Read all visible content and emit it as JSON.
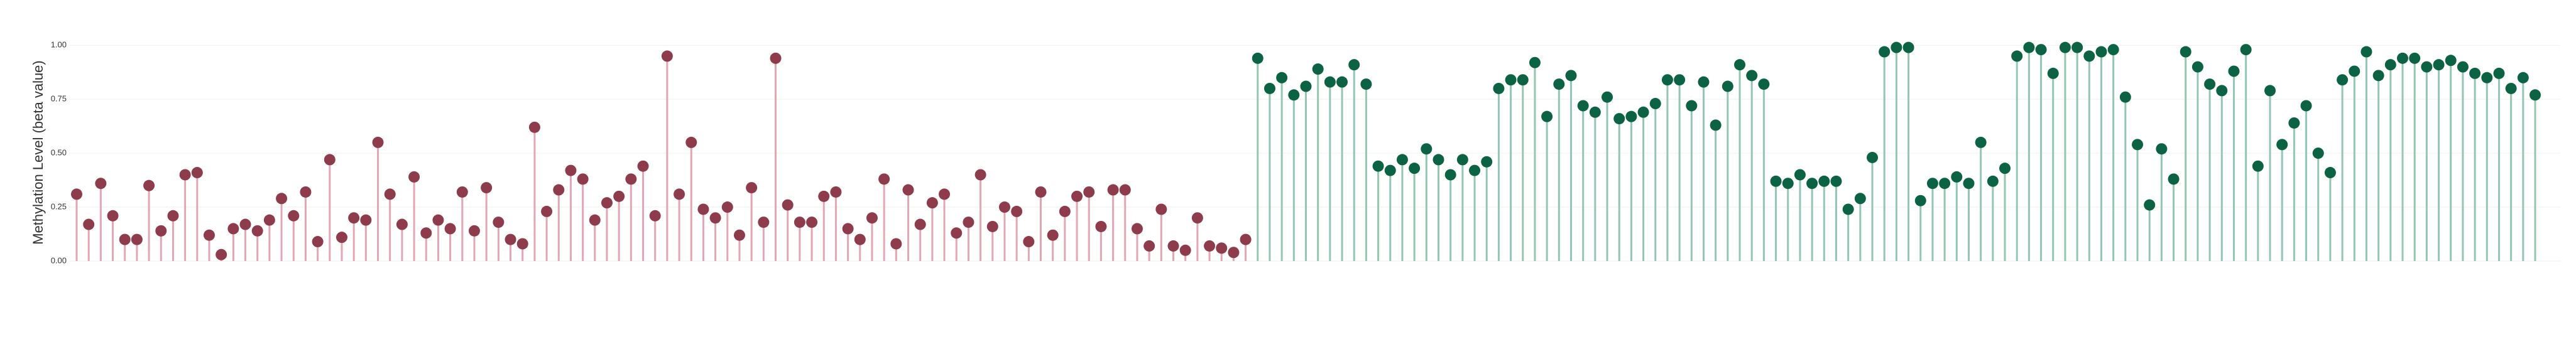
{
  "chart_data": {
    "type": "lollipop",
    "y_label": "Methylation Level (beta value)",
    "ylim": [
      0,
      1.05
    ],
    "yticks": [
      {
        "value": 0,
        "label": "0.00"
      },
      {
        "value": 0.25,
        "label": "0.25"
      },
      {
        "value": 0.5,
        "label": "0.50"
      },
      {
        "value": 0.75,
        "label": "0.75"
      },
      {
        "value": 1,
        "label": "1.00"
      }
    ],
    "grid": true,
    "series": [
      {
        "color": "#8e3b4b",
        "stem_color": "#e3a6b4",
        "values": [
          0.31,
          0.17,
          0.36,
          0.21,
          0.1,
          0.1,
          0.35,
          0.14,
          0.21,
          0.4,
          0.41,
          0.12,
          0.03,
          0.15,
          0.17,
          0.14,
          0.19,
          0.29,
          0.21,
          0.32,
          0.09,
          0.47,
          0.11,
          0.2,
          0.19,
          0.55,
          0.31,
          0.17,
          0.39,
          0.13,
          0.19,
          0.15,
          0.32,
          0.14,
          0.34,
          0.18,
          0.1,
          0.08,
          0.62,
          0.23,
          0.33,
          0.42,
          0.38,
          0.19,
          0.27,
          0.3,
          0.38,
          0.44,
          0.21,
          0.95,
          0.31,
          0.55,
          0.24,
          0.2,
          0.25,
          0.12,
          0.34,
          0.18,
          0.94,
          0.26,
          0.18,
          0.18,
          0.3,
          0.32,
          0.15,
          0.1,
          0.2,
          0.38,
          0.08,
          0.33,
          0.17,
          0.27,
          0.31,
          0.13,
          0.18,
          0.4,
          0.16,
          0.25,
          0.23,
          0.09,
          0.32,
          0.12,
          0.23,
          0.3,
          0.32,
          0.16,
          0.33,
          0.33,
          0.15,
          0.07,
          0.24,
          0.07,
          0.05,
          0.2,
          0.07,
          0.06,
          0.04,
          0.1
        ]
      },
      {
        "color": "#0b6343",
        "stem_color": "#93c7b2",
        "values": [
          0.94,
          0.8,
          0.85,
          0.77,
          0.81,
          0.89,
          0.83,
          0.83,
          0.91,
          0.82,
          0.44,
          0.42,
          0.47,
          0.43,
          0.52,
          0.47,
          0.4,
          0.47,
          0.42,
          0.46,
          0.8,
          0.84,
          0.84,
          0.92,
          0.67,
          0.82,
          0.86,
          0.72,
          0.69,
          0.76,
          0.66,
          0.67,
          0.69,
          0.73,
          0.84,
          0.84,
          0.72,
          0.83,
          0.63,
          0.81,
          0.91,
          0.86,
          0.82,
          0.37,
          0.36,
          0.4,
          0.36,
          0.37,
          0.37,
          0.24,
          0.29,
          0.48,
          0.97,
          0.99,
          0.99,
          0.28,
          0.36,
          0.36,
          0.39,
          0.36,
          0.55,
          0.37,
          0.43,
          0.95,
          0.99,
          0.98,
          0.87,
          0.99,
          0.99,
          0.95,
          0.97,
          0.98,
          0.76,
          0.54,
          0.26,
          0.52,
          0.38,
          0.97,
          0.9,
          0.82,
          0.79,
          0.88,
          0.98,
          0.44,
          0.79,
          0.54,
          0.64,
          0.72,
          0.5,
          0.41,
          0.84,
          0.88,
          0.97,
          0.86,
          0.91,
          0.94,
          0.94,
          0.9,
          0.91,
          0.93,
          0.9,
          0.87,
          0.85,
          0.87,
          0.8,
          0.85,
          0.77
        ]
      }
    ]
  }
}
